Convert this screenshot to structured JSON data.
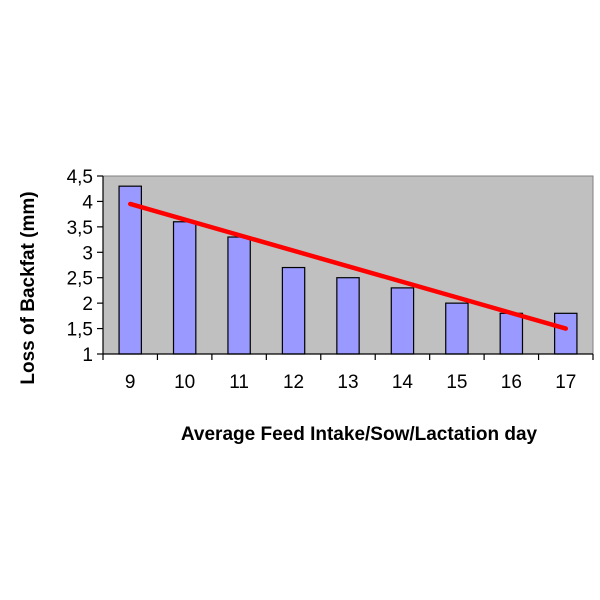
{
  "chart_data": {
    "type": "bar",
    "categories": [
      "9",
      "10",
      "11",
      "12",
      "13",
      "14",
      "15",
      "16",
      "17"
    ],
    "values": [
      4.3,
      3.6,
      3.3,
      2.7,
      2.5,
      2.3,
      2.0,
      1.8,
      1.8
    ],
    "trendline": {
      "start": 3.95,
      "end": 1.5,
      "color": "#ff0000"
    },
    "xlabel": "Average Feed Intake/Sow/Lactation day",
    "ylabel": "Loss of Backfat (mm)",
    "ylim": [
      1,
      4.5
    ],
    "yticks": [
      "1",
      "1,5",
      "2",
      "2,5",
      "3",
      "3,5",
      "4",
      "4,5"
    ],
    "ytick_values": [
      1,
      1.5,
      2,
      2.5,
      3,
      3.5,
      4,
      4.5
    ],
    "grid": false,
    "legend": "none",
    "colors": {
      "bar": "#9999ff",
      "plot_bg": "#c0c0c0",
      "trend": "#ff0000"
    }
  }
}
